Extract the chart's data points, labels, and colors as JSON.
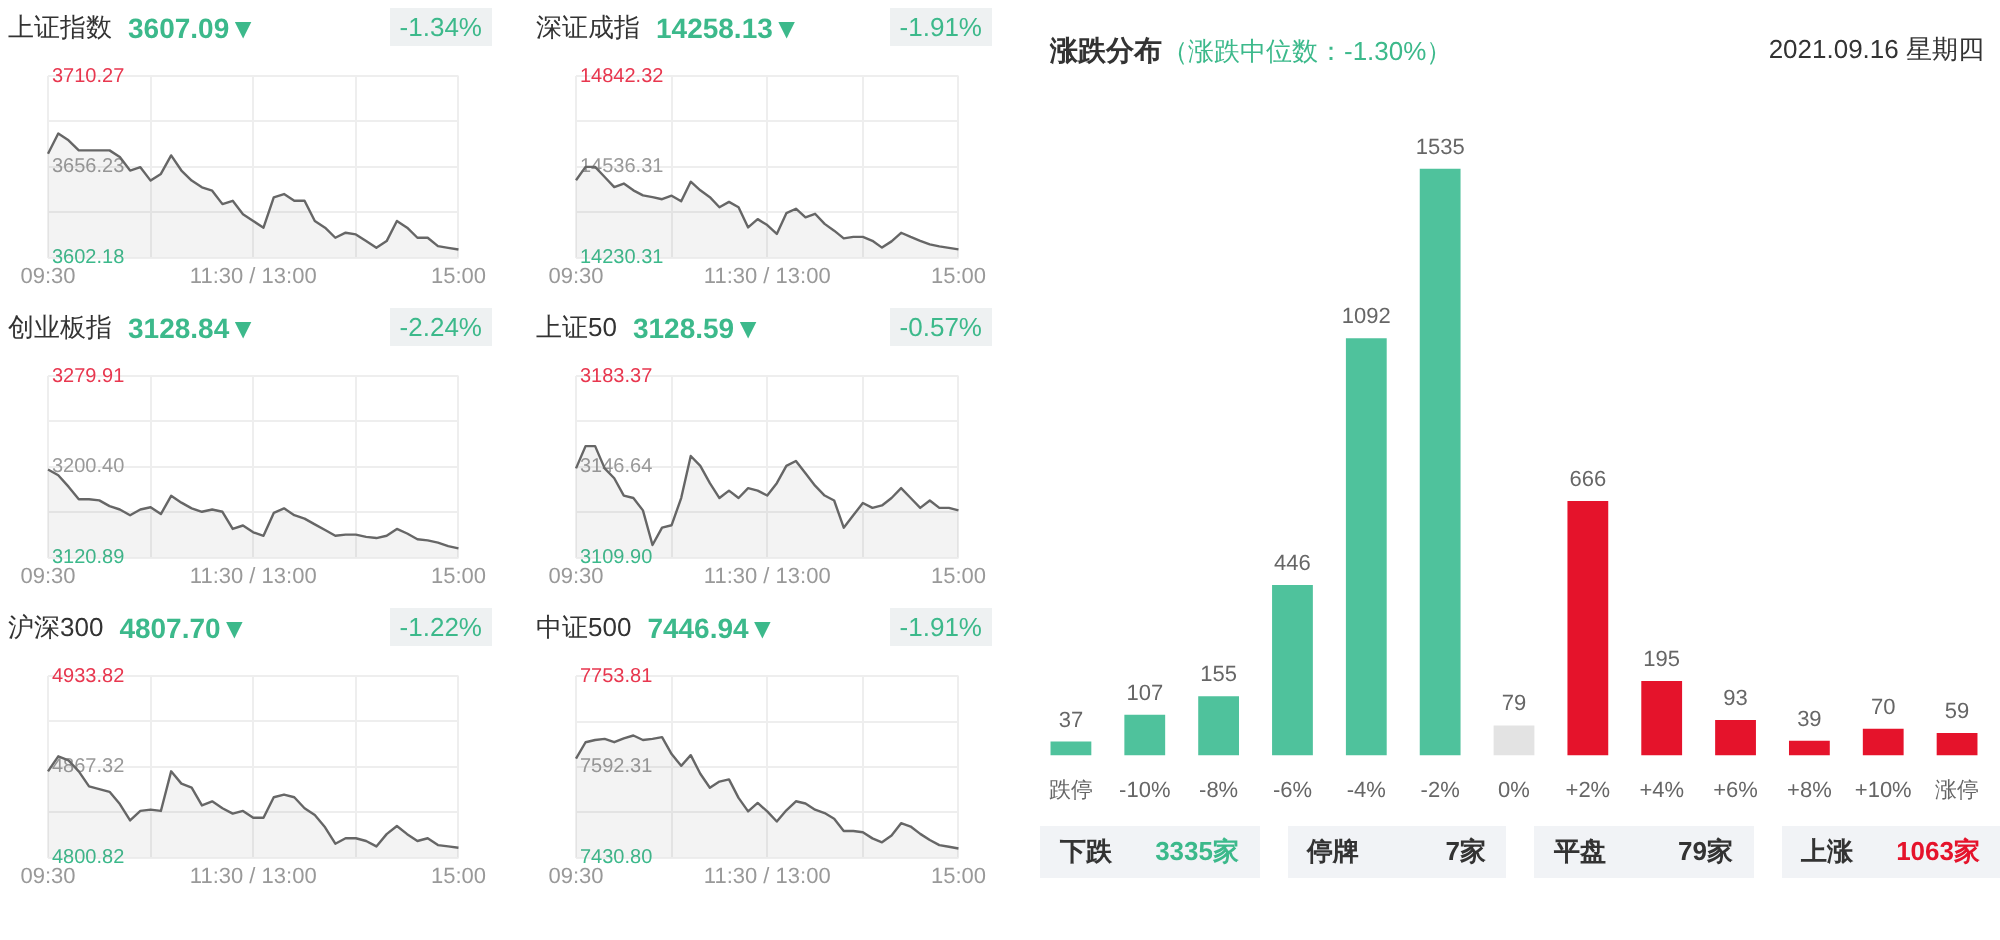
{
  "chart_data": [
    {
      "type": "area",
      "title": "上证指数",
      "subtitle": "3607.09▼",
      "annotations": [
        "-1.34%"
      ],
      "color": "#666666",
      "grid": true,
      "ylim": [
        3602.18,
        3710.27
      ],
      "categories": [
        "09:30",
        null,
        null,
        null,
        null,
        null,
        null,
        null,
        null,
        null,
        null,
        null,
        null,
        null,
        null,
        null,
        null,
        null,
        null,
        null,
        "11:30 / 13:00",
        null,
        null,
        null,
        null,
        null,
        null,
        null,
        null,
        null,
        null,
        null,
        null,
        null,
        null,
        null,
        null,
        null,
        null,
        null,
        "15:00"
      ],
      "yticks": [
        3602.18,
        {
          "value": 3629.2,
          "label": null
        },
        3656.23,
        {
          "value": 3683.25,
          "label": null
        },
        3710.27
      ],
      "values": [
        3664,
        3676,
        3672,
        3666,
        3666,
        3666,
        3666,
        3662,
        3654,
        3656,
        3648,
        3652,
        3663,
        3654,
        3648,
        3644,
        3642,
        3634,
        3636,
        3628,
        3624,
        3620,
        3638,
        3640,
        3636,
        3636,
        3624,
        3620,
        3614,
        3617,
        3616,
        3612,
        3608,
        3612,
        3624,
        3620,
        3614,
        3614,
        3609,
        3608,
        3607
      ]
    },
    {
      "type": "area",
      "title": "深证成指",
      "subtitle": "14258.13▼",
      "annotations": [
        "-1.91%"
      ],
      "color": "#666666",
      "grid": true,
      "ylim": [
        14230.31,
        14842.32
      ],
      "categories": [
        "09:30",
        null,
        null,
        null,
        null,
        null,
        null,
        null,
        null,
        null,
        null,
        null,
        null,
        null,
        null,
        null,
        null,
        null,
        null,
        null,
        "11:30 / 13:00",
        null,
        null,
        null,
        null,
        null,
        null,
        null,
        null,
        null,
        null,
        null,
        null,
        null,
        null,
        null,
        null,
        null,
        null,
        null,
        "15:00"
      ],
      "yticks": [
        14230.31,
        {
          "value": 14383.31,
          "label": null
        },
        14536.31,
        {
          "value": 14689.32,
          "label": null
        },
        14842.32
      ],
      "values": [
        14491,
        14536,
        14536,
        14502,
        14468,
        14480,
        14457,
        14440,
        14434,
        14427,
        14439,
        14420,
        14486,
        14457,
        14434,
        14400,
        14418,
        14400,
        14332,
        14360,
        14340,
        14310,
        14380,
        14395,
        14366,
        14378,
        14344,
        14321,
        14295,
        14300,
        14300,
        14287,
        14264,
        14285,
        14314,
        14300,
        14287,
        14275,
        14268,
        14263,
        14258
      ]
    },
    {
      "type": "area",
      "title": "创业板指",
      "subtitle": "3128.84▼",
      "annotations": [
        "-2.24%"
      ],
      "color": "#666666",
      "grid": true,
      "ylim": [
        3120.89,
        3279.91
      ],
      "categories": [
        "09:30",
        null,
        null,
        null,
        null,
        null,
        null,
        null,
        null,
        null,
        null,
        null,
        null,
        null,
        null,
        null,
        null,
        null,
        null,
        null,
        "11:30 / 13:00",
        null,
        null,
        null,
        null,
        null,
        null,
        null,
        null,
        null,
        null,
        null,
        null,
        null,
        null,
        null,
        null,
        null,
        null,
        null,
        "15:00"
      ],
      "yticks": [
        3120.89,
        {
          "value": 3160.65,
          "label": null
        },
        {
          "value": 3200.4,
          "label": "3200.40"
        },
        {
          "value": 3240.16,
          "label": null
        },
        3279.91
      ],
      "values": [
        3198,
        3193,
        3183,
        3172,
        3172,
        3171,
        3166,
        3163,
        3158,
        3163,
        3165,
        3159,
        3175,
        3169,
        3164,
        3161,
        3163,
        3161,
        3146,
        3149,
        3143,
        3140,
        3160,
        3164,
        3158,
        3155,
        3150,
        3145,
        3140,
        3141,
        3141,
        3139,
        3138,
        3140,
        3146,
        3142,
        3137,
        3136,
        3134,
        3131,
        3129
      ]
    },
    {
      "type": "area",
      "title": "上证50",
      "subtitle": "3128.59▼",
      "annotations": [
        "-0.57%"
      ],
      "color": "#666666",
      "grid": true,
      "ylim": [
        3109.9,
        3183.37
      ],
      "categories": [
        "09:30",
        null,
        null,
        null,
        null,
        null,
        null,
        null,
        null,
        null,
        null,
        null,
        null,
        null,
        null,
        null,
        null,
        null,
        null,
        null,
        "11:30 / 13:00",
        null,
        null,
        null,
        null,
        null,
        null,
        null,
        null,
        null,
        null,
        null,
        null,
        null,
        null,
        null,
        null,
        null,
        null,
        null,
        "15:00"
      ],
      "yticks": [
        {
          "value": 3109.9,
          "label": "3109.90"
        },
        {
          "value": 3128.27,
          "label": null
        },
        3146.64,
        {
          "value": 3165.0,
          "label": null
        },
        3183.37
      ],
      "values": [
        3146,
        3155,
        3155,
        3146,
        3142,
        3135,
        3134,
        3129,
        3115,
        3122,
        3123,
        3134,
        3151,
        3147,
        3140,
        3134,
        3137,
        3134,
        3138,
        3137,
        3135,
        3140,
        3147,
        3149,
        3144,
        3139,
        3135,
        3133,
        3122,
        3127,
        3132,
        3130,
        3131,
        3134,
        3138,
        3134,
        3130,
        3133,
        3130,
        3130,
        3129
      ]
    },
    {
      "type": "area",
      "title": "沪深300",
      "subtitle": "4807.70▼",
      "annotations": [
        "-1.22%"
      ],
      "color": "#666666",
      "grid": true,
      "ylim": [
        4800.82,
        4933.82
      ],
      "categories": [
        "09:30",
        null,
        null,
        null,
        null,
        null,
        null,
        null,
        null,
        null,
        null,
        null,
        null,
        null,
        null,
        null,
        null,
        null,
        null,
        null,
        "11:30 / 13:00",
        null,
        null,
        null,
        null,
        null,
        null,
        null,
        null,
        null,
        null,
        null,
        null,
        null,
        null,
        null,
        null,
        null,
        null,
        null,
        "15:00"
      ],
      "yticks": [
        4800.82,
        {
          "value": 4834.07,
          "label": null
        },
        4867.32,
        {
          "value": 4900.57,
          "label": null
        },
        4933.82
      ],
      "values": [
        4864,
        4875,
        4872,
        4864,
        4853,
        4851,
        4849,
        4840,
        4828,
        4835,
        4836,
        4835,
        4864,
        4855,
        4852,
        4839,
        4842,
        4837,
        4833,
        4835,
        4830,
        4830,
        4845,
        4847,
        4845,
        4837,
        4832,
        4823,
        4811,
        4815,
        4815,
        4813,
        4809,
        4818,
        4824,
        4818,
        4813,
        4815,
        4810,
        4809,
        4808
      ]
    },
    {
      "type": "area",
      "title": "中证500",
      "subtitle": "7446.94▼",
      "annotations": [
        "-1.91%"
      ],
      "color": "#666666",
      "grid": true,
      "ylim": [
        7430.8,
        7753.81
      ],
      "categories": [
        "09:30",
        null,
        null,
        null,
        null,
        null,
        null,
        null,
        null,
        null,
        null,
        null,
        null,
        null,
        null,
        null,
        null,
        null,
        null,
        null,
        "11:30 / 13:00",
        null,
        null,
        null,
        null,
        null,
        null,
        null,
        null,
        null,
        null,
        null,
        null,
        null,
        null,
        null,
        null,
        null,
        null,
        null,
        "15:00"
      ],
      "yticks": [
        {
          "value": 7430.8,
          "label": "7430.80"
        },
        {
          "value": 7511.55,
          "label": null
        },
        7592.31,
        {
          "value": 7672.56,
          "label": null
        },
        7753.81
      ],
      "values": [
        7607,
        7636,
        7640,
        7642,
        7636,
        7643,
        7648,
        7640,
        7642,
        7645,
        7615,
        7594,
        7613,
        7580,
        7555,
        7566,
        7570,
        7537,
        7513,
        7528,
        7513,
        7495,
        7515,
        7531,
        7527,
        7516,
        7510,
        7500,
        7478,
        7478,
        7476,
        7465,
        7458,
        7470,
        7492,
        7486,
        7473,
        7462,
        7453,
        7450,
        7447
      ]
    },
    {
      "type": "bar",
      "title": "涨跌分布",
      "subtitle": "（涨跌中位数：-1.30%）",
      "data_labels": true,
      "annotations": [
        "2021.09.16 星期四",
        "下跌",
        "3335家",
        "停牌",
        "7家",
        "平盘",
        "79家",
        "上涨",
        "1063家"
      ],
      "categories": [
        "跌停",
        "-10%",
        "-8%",
        "-6%",
        "-4%",
        "-2%",
        "0%",
        "+2%",
        "+4%",
        "+6%",
        "+8%",
        "+10%",
        "涨停"
      ],
      "values": [
        37,
        107,
        155,
        446,
        1092,
        1535,
        79,
        666,
        195,
        93,
        39,
        70,
        59
      ],
      "colors": [
        "#4fc29c",
        "#4fc29c",
        "#4fc29c",
        "#4fc29c",
        "#4fc29c",
        "#4fc29c",
        "#e3e3e3",
        "#e5132b",
        "#e5132b",
        "#e5132b",
        "#e5132b",
        "#e5132b",
        "#e5132b"
      ]
    }
  ]
}
